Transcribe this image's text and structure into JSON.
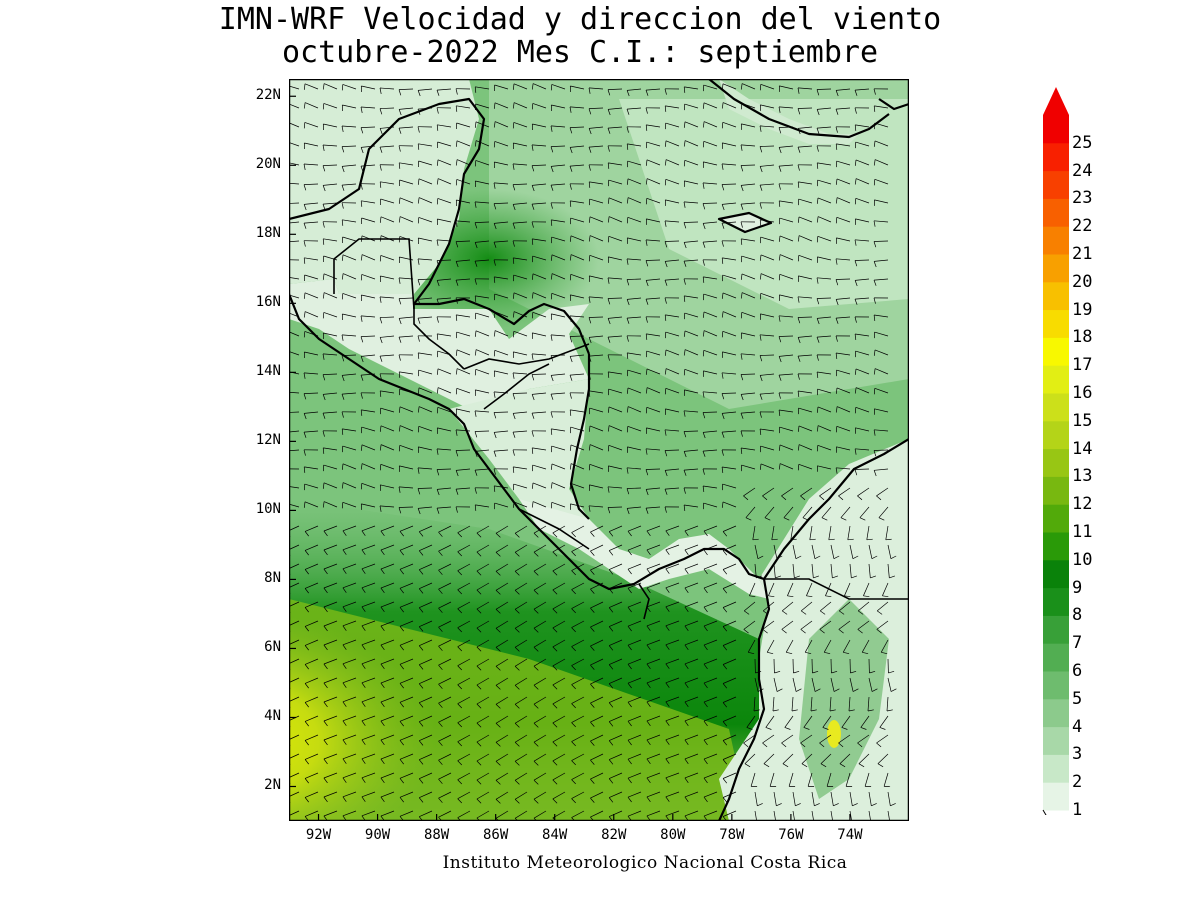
{
  "title": {
    "line1": "IMN-WRF Velocidad y direccion del viento",
    "line2": "octubre-2022 Mes C.I.: septiembre"
  },
  "credit": "Instituto Meteorologico Nacional Costa Rica",
  "map": {
    "region": "Central America and Caribbean",
    "lon_range": [
      -93.0,
      -72.0
    ],
    "lat_range": [
      1.0,
      22.5
    ],
    "lat_labels": [
      "22N",
      "20N",
      "18N",
      "16N",
      "14N",
      "12N",
      "10N",
      "8N",
      "6N",
      "4N",
      "2N"
    ],
    "lon_labels": [
      "92W",
      "90W",
      "88W",
      "86W",
      "84W",
      "82W",
      "80W",
      "78W",
      "76W",
      "74W"
    ],
    "variable": "wind speed and direction",
    "fill_colors": {
      "land_low": "#e4f2e4",
      "sea_moderate": "#6ab86a",
      "sea_strong": "#0e8a0e",
      "high_speed": "#e8f000"
    }
  },
  "legend": {
    "values": [
      "1",
      "2",
      "3",
      "4",
      "5",
      "6",
      "7",
      "8",
      "9",
      "10",
      "11",
      "12",
      "13",
      "14",
      "15",
      "16",
      "17",
      "18",
      "19",
      "20",
      "21",
      "22",
      "23",
      "24",
      "25"
    ],
    "colors": [
      "#e6f4e6",
      "#c8e8c8",
      "#a8d8a8",
      "#8cca8c",
      "#6ebc6e",
      "#52ae52",
      "#38a038",
      "#1a901a",
      "#0a820a",
      "#2a9a08",
      "#52aa0a",
      "#78b810",
      "#98c614",
      "#b4d418",
      "#cce01a",
      "#e2ee14",
      "#f8f800",
      "#f8dc00",
      "#f8c000",
      "#f8a000",
      "#f88000",
      "#f86000",
      "#f84000",
      "#f82000",
      "#f00000"
    ],
    "arrow_color": "#f00000"
  }
}
